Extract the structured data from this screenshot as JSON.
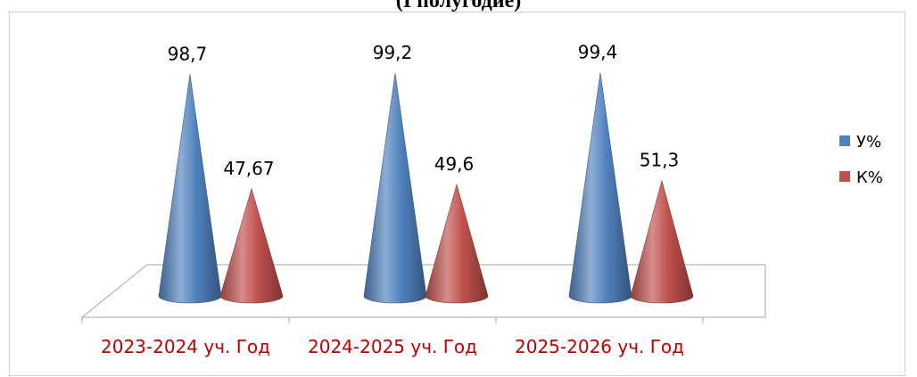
{
  "title": "(I полугодие)",
  "chart_data": {
    "type": "bar",
    "bar_shape": "cone",
    "categories": [
      "2023-2024 уч. Год",
      "2024-2025 уч. Год",
      "2025-2026 уч. Год"
    ],
    "series": [
      {
        "name": "У%",
        "values": [
          98.7,
          99.2,
          99.4
        ],
        "labels": [
          "98,7",
          "99,2",
          "99,4"
        ],
        "color": "#4f81bd"
      },
      {
        "name": "К%",
        "values": [
          47.67,
          49.6,
          51.3
        ],
        "labels": [
          "47,67",
          "49,6",
          "51,3"
        ],
        "color": "#c0504d"
      }
    ],
    "ylim": [
      0,
      100
    ],
    "grid": false,
    "legend_position": "right",
    "category_label_color": "#c00000"
  }
}
